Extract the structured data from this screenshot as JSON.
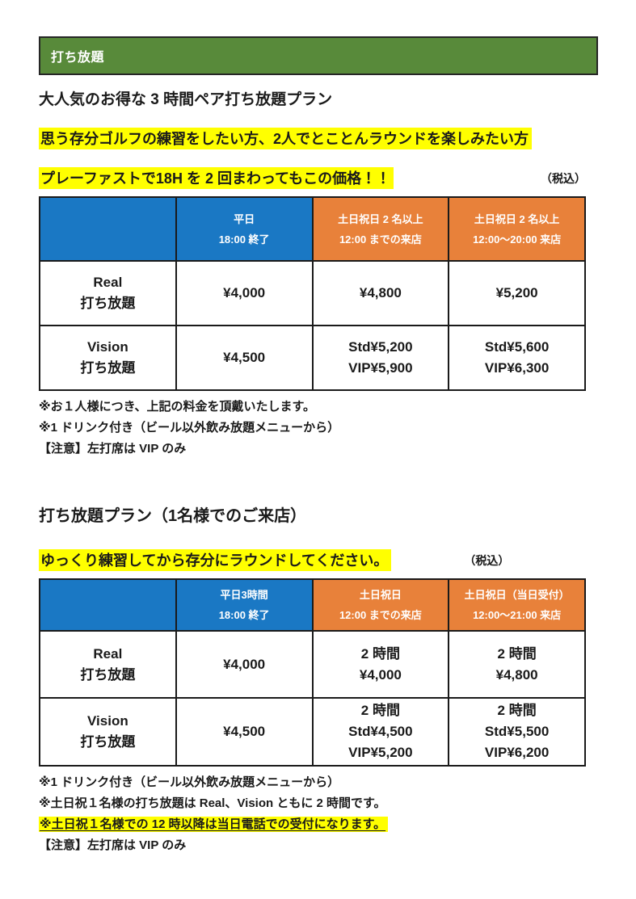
{
  "colors": {
    "banner_green": "#588A3A",
    "header_blue": "#1A78C4",
    "header_orange": "#E8813A",
    "highlight_yellow": "#FFFF00",
    "table_border": "#1A1A1A"
  },
  "banner": {
    "title": "打ち放題"
  },
  "section1": {
    "heading": "大人気のお得な 3 時間ペア打ち放題プラン",
    "highlight_line1": "思う存分ゴルフの練習をしたい方、2人でとことんラウンドを楽しみたい方",
    "highlight_line2": "プレーファストで18H を 2 回まわってもこの価格！！",
    "tax_note": "（税込）",
    "table": {
      "columns": [
        {
          "bg": "blue",
          "lines": []
        },
        {
          "bg": "blue",
          "lines": [
            "平日",
            "18:00 終了"
          ]
        },
        {
          "bg": "orange",
          "lines": [
            "土日祝日 2 名以上",
            "12:00 までの来店"
          ]
        },
        {
          "bg": "orange",
          "lines": [
            "土日祝日 2 名以上",
            "12:00～20:00 来店"
          ]
        }
      ],
      "rows": [
        {
          "label": [
            "Real",
            "打ち放題"
          ],
          "cells": [
            [
              "¥4,000"
            ],
            [
              "¥4,800"
            ],
            [
              "¥5,200"
            ]
          ]
        },
        {
          "label": [
            "Vision",
            "打ち放題"
          ],
          "cells": [
            [
              "¥4,500"
            ],
            [
              "Std¥5,200",
              "VIP¥5,900"
            ],
            [
              "Std¥5,600",
              "VIP¥6,300"
            ]
          ]
        }
      ]
    },
    "notes": [
      {
        "text": "※お１人様につき、上記の料金を頂戴いたします。",
        "highlight": false
      },
      {
        "text": "※1 ドリンク付き（ビール以外飲み放題メニューから）",
        "highlight": false
      },
      {
        "text": "【注意】左打席は VIP のみ",
        "highlight": false
      }
    ]
  },
  "section2": {
    "heading": "打ち放題プラン（1名様でのご来店）",
    "highlight_line1": "ゆっくり練習してから存分にラウンドしてください。",
    "tax_note": "（税込）",
    "table": {
      "columns": [
        {
          "bg": "blue",
          "lines": []
        },
        {
          "bg": "blue",
          "lines": [
            "平日3時間",
            "18:00 終了"
          ]
        },
        {
          "bg": "orange",
          "lines": [
            "土日祝日",
            "12:00 までの来店"
          ]
        },
        {
          "bg": "orange",
          "lines": [
            "土日祝日（当日受付）",
            "12:00～21:00 来店"
          ]
        }
      ],
      "rows": [
        {
          "label": [
            "Real",
            "打ち放題"
          ],
          "cells": [
            [
              "¥4,000"
            ],
            [
              "2 時間",
              "¥4,000"
            ],
            [
              "2 時間",
              "¥4,800"
            ]
          ]
        },
        {
          "label": [
            "Vision",
            "打ち放題"
          ],
          "cells": [
            [
              "¥4,500"
            ],
            [
              "2 時間",
              "Std¥4,500",
              "VIP¥5,200"
            ],
            [
              "2 時間",
              "Std¥5,500",
              "VIP¥6,200"
            ]
          ]
        }
      ]
    },
    "notes": [
      {
        "text": "※1 ドリンク付き（ビール以外飲み放題メニューから）",
        "highlight": false
      },
      {
        "text": "※土日祝１名様の打ち放題は Real、Vision ともに 2 時間です。",
        "highlight": false
      },
      {
        "text": "※土日祝１名様での 12 時以降は当日電話での受付になります。",
        "highlight": true
      },
      {
        "text": "【注意】左打席は VIP のみ",
        "highlight": false
      }
    ]
  }
}
